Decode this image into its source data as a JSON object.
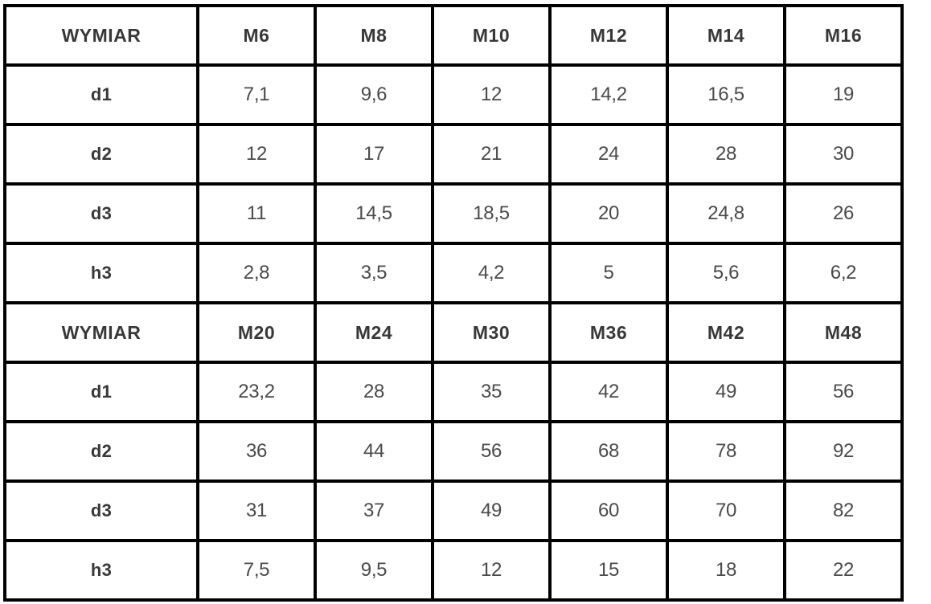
{
  "table": {
    "colors": {
      "border": "#000000",
      "header_text": "#383838",
      "value_text": "#4a4a4a",
      "background": "#ffffff"
    },
    "sections": [
      {
        "header": {
          "label": "WYMIAR",
          "columns": [
            "M6",
            "M8",
            "M10",
            "M12",
            "M14",
            "M16"
          ]
        },
        "rows": [
          {
            "label": "d1",
            "values": [
              "7,1",
              "9,6",
              "12",
              "14,2",
              "16,5",
              "19"
            ]
          },
          {
            "label": "d2",
            "values": [
              "12",
              "17",
              "21",
              "24",
              "28",
              "30"
            ]
          },
          {
            "label": "d3",
            "values": [
              "11",
              "14,5",
              "18,5",
              "20",
              "24,8",
              "26"
            ]
          },
          {
            "label": "h3",
            "values": [
              "2,8",
              "3,5",
              "4,2",
              "5",
              "5,6",
              "6,2"
            ]
          }
        ]
      },
      {
        "header": {
          "label": "WYMIAR",
          "columns": [
            "M20",
            "M24",
            "M30",
            "M36",
            "M42",
            "M48"
          ]
        },
        "rows": [
          {
            "label": "d1",
            "values": [
              "23,2",
              "28",
              "35",
              "42",
              "49",
              "56"
            ]
          },
          {
            "label": "d2",
            "values": [
              "36",
              "44",
              "56",
              "68",
              "78",
              "92"
            ]
          },
          {
            "label": "d3",
            "values": [
              "31",
              "37",
              "49",
              "60",
              "70",
              "82"
            ]
          },
          {
            "label": "h3",
            "values": [
              "7,5",
              "9,5",
              "12",
              "15",
              "18",
              "22"
            ]
          }
        ]
      }
    ]
  }
}
